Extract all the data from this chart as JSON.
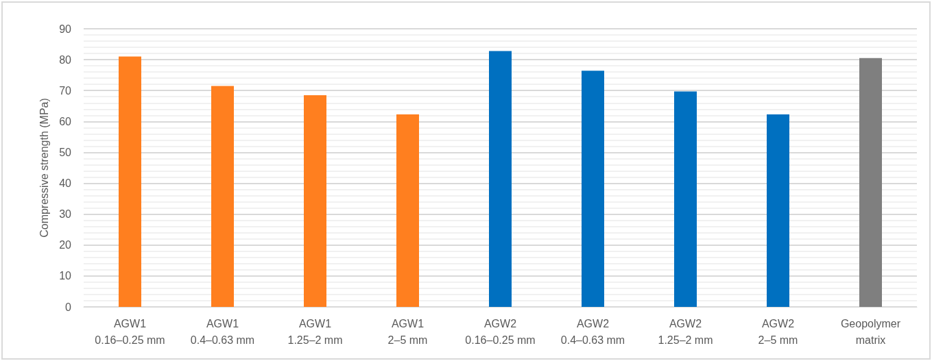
{
  "chart_data": {
    "type": "bar",
    "ylabel": "Compressive strength (MPa)",
    "categories": [
      "AGW1\n0.16–0.25 mm",
      "AGW1\n0.4–0.63 mm",
      "AGW1\n1.25–2 mm",
      "AGW1\n2–5 mm",
      "AGW2\n0.16–0.25 mm",
      "AGW2\n0.4–0.63 mm",
      "AGW2\n1.25–2 mm",
      "AGW2\n2–5 mm",
      "Geopolymer\nmatrix"
    ],
    "values": [
      81,
      71.5,
      68.5,
      62.3,
      82.8,
      76.4,
      69.7,
      62.3,
      80.5
    ],
    "colors": [
      "#ff7f1f",
      "#ff7f1f",
      "#ff7f1f",
      "#ff7f1f",
      "#0070c0",
      "#0070c0",
      "#0070c0",
      "#0070c0",
      "#7f7f7f"
    ],
    "ylim": [
      0,
      90
    ],
    "yticks": [
      0,
      10,
      20,
      30,
      40,
      50,
      60,
      70,
      80,
      90
    ],
    "grid": "y"
  }
}
